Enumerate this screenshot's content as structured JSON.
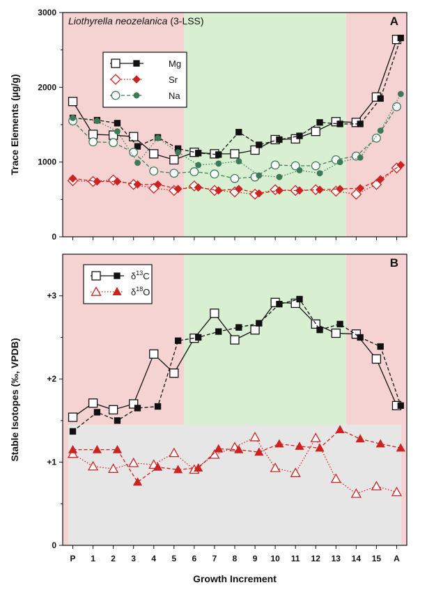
{
  "chart_data": [
    {
      "type": "line",
      "panel_label": "A",
      "title": "Liothyrella neozelanica",
      "title_suffix": " (3-LSS)",
      "ylabel": "Trace Elements (µg/g)",
      "ylim": [
        0,
        3000
      ],
      "yticks": [
        "0",
        "1000",
        "2000",
        "3000"
      ],
      "categories": [
        "P",
        "1",
        "2",
        "3",
        "4",
        "5",
        "6",
        "7",
        "8",
        "9",
        "10",
        "11",
        "12",
        "13",
        "14",
        "15",
        "A"
      ],
      "shading": [
        {
          "from": -0.5,
          "to": 5.5,
          "color": "#f6d3d3"
        },
        {
          "from": 5.5,
          "to": 13.5,
          "color": "#d9efd1"
        },
        {
          "from": 13.5,
          "to": 16.5,
          "color": "#f6d3d3"
        }
      ],
      "legend_position": "top-left",
      "series": [
        {
          "name": "Mg",
          "color": "#111111",
          "style": "solid",
          "marker": "square-open",
          "x": [
            0,
            1,
            2,
            3,
            4,
            5,
            6,
            7,
            8,
            9,
            10,
            11,
            12,
            13,
            14,
            15,
            16
          ],
          "values": [
            1810,
            1370,
            1360,
            1340,
            1110,
            1030,
            1130,
            1110,
            1110,
            1160,
            1300,
            1310,
            1410,
            1540,
            1530,
            1870,
            2640
          ]
        },
        {
          "name": "Mg-filled",
          "color": "#111111",
          "style": "dashed",
          "marker": "square-filled",
          "x": [
            0,
            1.2,
            2.2,
            3.2,
            4.2,
            5.2,
            6.2,
            7.2,
            8.2,
            9.2,
            10.2,
            11.2,
            12.2,
            13.2,
            14.2,
            15.2,
            16.2
          ],
          "values": [
            1590,
            1560,
            1520,
            1210,
            1330,
            1180,
            1120,
            1100,
            1400,
            1230,
            1300,
            1350,
            1530,
            1510,
            1510,
            1850,
            2660
          ]
        },
        {
          "name": "Sr",
          "color": "#cc2222",
          "style": "dotted",
          "marker": "diamond-open",
          "x": [
            0,
            1,
            2,
            3,
            4,
            5,
            6,
            7,
            8,
            9,
            10,
            11,
            12,
            13,
            14,
            15,
            16
          ],
          "values": [
            750,
            740,
            760,
            700,
            650,
            620,
            680,
            620,
            600,
            570,
            630,
            620,
            630,
            610,
            570,
            700,
            920
          ]
        },
        {
          "name": "Sr-filled",
          "color": "#cc2222",
          "style": "dashed",
          "marker": "diamond-filled",
          "x": [
            0,
            1.2,
            2.2,
            3.2,
            4.2,
            5.2,
            6.2,
            7.2,
            8.2,
            9.2,
            10.2,
            11.2,
            12.2,
            13.2,
            14.2,
            15.2,
            16.2
          ],
          "values": [
            780,
            740,
            740,
            700,
            700,
            640,
            660,
            620,
            640,
            580,
            620,
            620,
            630,
            640,
            650,
            770,
            960
          ]
        },
        {
          "name": "Na",
          "color": "#3d7a5a",
          "style": "dashed",
          "marker": "circle-open",
          "x": [
            0,
            1,
            2,
            3,
            4,
            5,
            6,
            7,
            8,
            9,
            10,
            11,
            12,
            13,
            14,
            15,
            16
          ],
          "values": [
            1550,
            1270,
            1260,
            1130,
            880,
            850,
            870,
            840,
            780,
            800,
            960,
            950,
            950,
            1030,
            1080,
            1320,
            1740
          ]
        },
        {
          "name": "Na-filled",
          "color": "#3d7a5a",
          "style": "dotted",
          "marker": "circle-filled",
          "x": [
            0,
            1.2,
            2.2,
            3.2,
            4.2,
            5.2,
            6.2,
            7.2,
            8.2,
            9.2,
            10.2,
            11.2,
            12.2,
            13.2,
            14.2,
            15.2,
            16.2
          ],
          "values": [
            1590,
            1550,
            1410,
            990,
            1320,
            1130,
            960,
            980,
            1010,
            820,
            800,
            890,
            850,
            1000,
            1060,
            1420,
            1910
          ]
        }
      ]
    },
    {
      "type": "line",
      "panel_label": "B",
      "ylabel": "Stable Isotopes (‰, VPDB)",
      "xlabel": "Growth Increment",
      "ylim": [
        0,
        3.5
      ],
      "yticks": [
        "0",
        "+1",
        "+2",
        "+3"
      ],
      "categories": [
        "P",
        "1",
        "2",
        "3",
        "4",
        "5",
        "6",
        "7",
        "8",
        "9",
        "10",
        "11",
        "12",
        "13",
        "14",
        "15",
        "A"
      ],
      "shading": [
        {
          "from": -0.5,
          "to": 5.5,
          "color": "#f6d3d3"
        },
        {
          "from": 5.5,
          "to": 13.5,
          "color": "#d9efd1"
        },
        {
          "from": 13.5,
          "to": 16.5,
          "color": "#f6d3d3"
        }
      ],
      "grey_band": {
        "from": 0,
        "to": 1.45,
        "color": "#e6e6e6"
      },
      "legend_position": "top-left",
      "series": [
        {
          "name": "δ13C",
          "label_base": "δ",
          "label_sup": "13",
          "label_tail": "C",
          "color": "#111111",
          "style": "solid",
          "marker": "square-open",
          "x": [
            0,
            1,
            2,
            3,
            4,
            5,
            6,
            7,
            8,
            9,
            10,
            11,
            12,
            13,
            14,
            15,
            16
          ],
          "values": [
            1.54,
            1.71,
            1.63,
            1.7,
            2.3,
            2.07,
            2.49,
            2.79,
            2.47,
            2.59,
            2.92,
            2.91,
            2.66,
            2.55,
            2.54,
            2.24,
            1.68
          ]
        },
        {
          "name": "δ13C-filled",
          "color": "#111111",
          "style": "dashed",
          "marker": "square-filled",
          "x": [
            0,
            1.2,
            2.2,
            3.2,
            4.2,
            5.2,
            6.2,
            7.2,
            8.2,
            9.2,
            10.2,
            11.2,
            12.2,
            13.2,
            14.2,
            15.2,
            16.2
          ],
          "values": [
            1.37,
            1.6,
            1.5,
            1.65,
            1.67,
            2.46,
            2.5,
            2.57,
            2.62,
            2.67,
            2.9,
            2.96,
            2.59,
            2.66,
            2.5,
            2.39,
            1.68
          ]
        },
        {
          "name": "δ18O",
          "label_base": "δ",
          "label_sup": "18",
          "label_tail": "O",
          "color": "#cc2222",
          "style": "dotted",
          "marker": "triangle-open",
          "x": [
            0,
            1,
            2,
            3,
            4,
            5,
            6,
            7,
            8,
            9,
            10,
            11,
            12,
            13,
            14,
            15,
            16
          ],
          "values": [
            1.1,
            0.95,
            0.92,
            0.99,
            0.97,
            1.11,
            0.91,
            1.09,
            1.18,
            1.3,
            0.93,
            0.87,
            1.29,
            0.8,
            0.62,
            0.71,
            0.64
          ]
        },
        {
          "name": "δ18O-filled",
          "color": "#cc2222",
          "style": "dashed",
          "marker": "triangle-filled",
          "x": [
            0,
            1.2,
            2.2,
            3.2,
            4.2,
            5.2,
            6.2,
            7.2,
            8.2,
            9.2,
            10.2,
            11.2,
            12.2,
            13.2,
            14.2,
            15.2,
            16.2
          ],
          "values": [
            1.15,
            1.15,
            1.15,
            0.76,
            0.94,
            0.91,
            0.93,
            1.16,
            1.15,
            1.12,
            1.22,
            1.19,
            1.17,
            1.39,
            1.28,
            1.22,
            1.17
          ]
        }
      ]
    }
  ]
}
